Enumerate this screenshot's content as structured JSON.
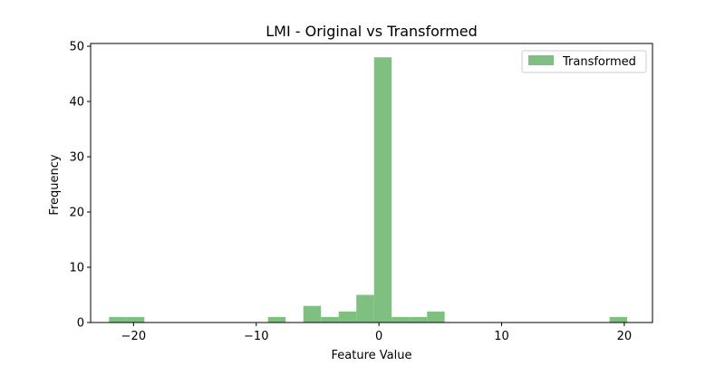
{
  "chart_data": {
    "type": "bar",
    "title": "LMI - Original vs Transformed",
    "xlabel": "Feature Value",
    "ylabel": "Frequency",
    "xlim": [
      -23.5,
      22.3
    ],
    "ylim": [
      0,
      50.5
    ],
    "grid": false,
    "legend_position": "top-right",
    "xticks": [
      -20,
      -10,
      0,
      10,
      20
    ],
    "yticks": [
      0,
      10,
      20,
      30,
      40,
      50
    ],
    "series": [
      {
        "name": "Transformed",
        "color": "#7fbf7f",
        "bins": [
          {
            "x0": -22.0,
            "x1": -20.56,
            "count": 1
          },
          {
            "x0": -20.56,
            "x1": -19.12,
            "count": 1
          },
          {
            "x0": -9.04,
            "x1": -7.6,
            "count": 1
          },
          {
            "x0": -6.16,
            "x1": -4.72,
            "count": 3
          },
          {
            "x0": -4.72,
            "x1": -3.28,
            "count": 1
          },
          {
            "x0": -3.28,
            "x1": -1.84,
            "count": 2
          },
          {
            "x0": -1.84,
            "x1": -0.4,
            "count": 5
          },
          {
            "x0": -0.4,
            "x1": 1.04,
            "count": 48
          },
          {
            "x0": 1.04,
            "x1": 2.48,
            "count": 1
          },
          {
            "x0": 2.48,
            "x1": 3.92,
            "count": 1
          },
          {
            "x0": 3.92,
            "x1": 5.36,
            "count": 2
          },
          {
            "x0": 18.8,
            "x1": 20.24,
            "count": 1
          }
        ]
      }
    ]
  }
}
